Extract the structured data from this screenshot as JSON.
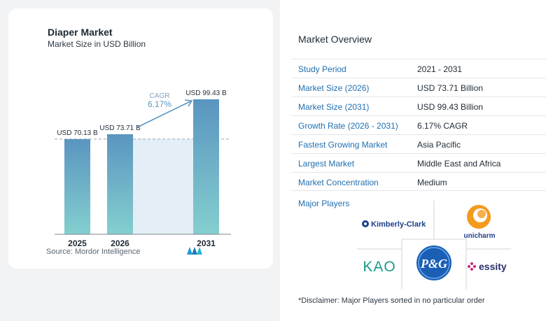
{
  "chart": {
    "title": "Diaper Market",
    "subtitle": "Market Size in USD Billion",
    "cagr_label": "CAGR",
    "cagr_value": "6.17%",
    "source": "Source:  Mordor Intelligence"
  },
  "chart_data": {
    "type": "bar",
    "categories": [
      "2025",
      "2026",
      "2031"
    ],
    "values": [
      70.13,
      73.71,
      99.43
    ],
    "data_labels": [
      "USD 70.13 B",
      "USD 73.71 B",
      "USD 99.43 B"
    ],
    "title": "Diaper Market",
    "subtitle": "Market Size in USD Billion",
    "xlabel": "",
    "ylabel": "",
    "grid": false,
    "colors": {
      "bar_top": "#5a95c0",
      "bar_bottom": "#84cfcf",
      "band": "#e4eef6",
      "arrow": "#5a95c0"
    }
  },
  "overview": {
    "title": "Market Overview",
    "rows": [
      {
        "key": "Study Period",
        "value": "2021 - 2031"
      },
      {
        "key": "Market Size (2026)",
        "value": "USD 73.71 Billion"
      },
      {
        "key": "Market Size (2031)",
        "value": "USD 99.43 Billion"
      },
      {
        "key": "Growth Rate (2026 - 2031)",
        "value": "6.17% CAGR"
      },
      {
        "key": "Fastest Growing Market",
        "value": "Asia Pacific"
      },
      {
        "key": "Largest Market",
        "value": "Middle East and Africa"
      },
      {
        "key": "Market Concentration",
        "value": "Medium"
      }
    ]
  },
  "players": {
    "title": "Major Players",
    "logos": {
      "kimberly_clark": "Kimberly-Clark",
      "unicharm": "unicharm",
      "kao": "KAO",
      "pg": "P&G",
      "essity": "essity"
    }
  },
  "disclaimer": "*Disclaimer: Major Players sorted in no particular order",
  "accent_colors": {
    "link_blue": "#1f6fb0",
    "kao_teal": "#1a9a8a",
    "pg_blue": "#1a5fb4",
    "essity_pink": "#c8287a",
    "unicharm_orange": "#f39a1c"
  }
}
